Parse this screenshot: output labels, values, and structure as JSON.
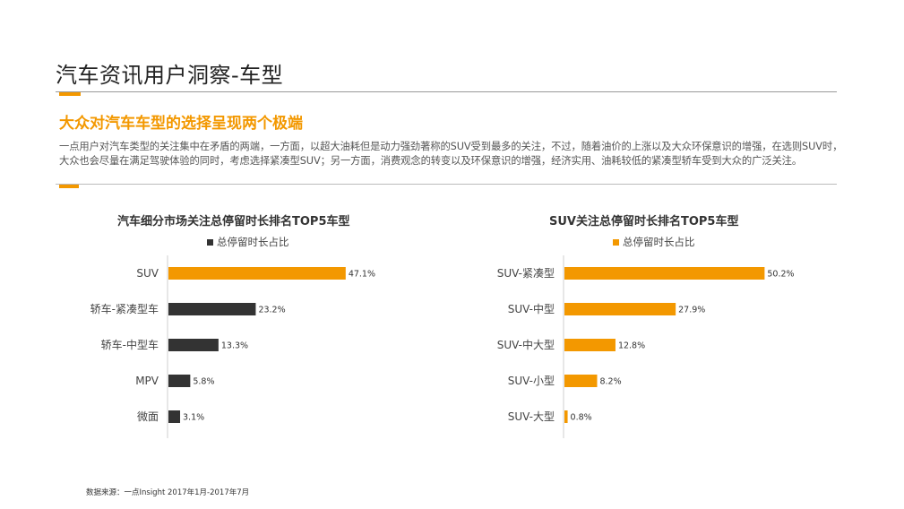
{
  "header": {
    "title": "汽车资讯用户洞察-车型",
    "subtitle": "大众对汽车车型的选择呈现两个极端",
    "description": "一点用户对汽车类型的关注集中在矛盾的两端，一方面，以超大油耗但是动力强劲著称的SUV受到最多的关注，不过，随着油价的上涨以及大众环保意识的增强，在选则SUV时，大众也会尽量在满足驾驶体验的同时，考虑选择紧凑型SUV；另一方面，消费观念的转变以及环保意识的增强，经济实用、油耗较低的紧凑型轿车受到大众的广泛关注。"
  },
  "source": "数据来源：一点Insight   2017年1月-2017年7月",
  "colors": {
    "accent": "#f39800",
    "dark": "#333333"
  },
  "chart_data": [
    {
      "type": "bar",
      "orientation": "horizontal",
      "title": "汽车细分市场关注总停留时长排名TOP5车型",
      "legend": "总停留时长占比",
      "categories": [
        "SUV",
        "轿车-紧凑型车",
        "轿车-中型车",
        "MPV",
        "微面"
      ],
      "values": [
        47.1,
        23.2,
        13.3,
        5.8,
        3.1
      ],
      "labels": [
        "47.1%",
        "23.2%",
        "13.3%",
        "5.8%",
        "3.1%"
      ],
      "colors": [
        "#f39800",
        "#333333",
        "#333333",
        "#333333",
        "#333333"
      ]
    },
    {
      "type": "bar",
      "orientation": "horizontal",
      "title": "SUV关注总停留时长排名TOP5车型",
      "legend": "总停留时长占比",
      "categories": [
        "SUV-紧凑型",
        "SUV-中型",
        "SUV-中大型",
        "SUV-小型",
        "SUV-大型"
      ],
      "values": [
        50.2,
        27.9,
        12.8,
        8.2,
        0.8
      ],
      "labels": [
        "50.2%",
        "27.9%",
        "12.8%",
        "8.2%",
        "0.8%"
      ],
      "colors": [
        "#f39800",
        "#f39800",
        "#f39800",
        "#f39800",
        "#f39800"
      ]
    }
  ]
}
